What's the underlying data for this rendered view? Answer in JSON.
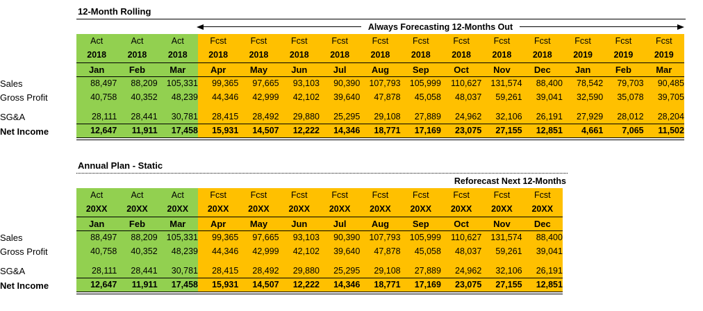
{
  "colors": {
    "background": "#FFFFFF",
    "actual_fill": "#92D050",
    "forecast_fill": "#FFC000",
    "line": "#000000",
    "text": "#000000"
  },
  "chart_data": [
    {
      "type": "table",
      "title": "12-Month Rolling",
      "annotation": "Always Forecasting 12-Months Out",
      "columns": [
        {
          "type": "Act",
          "year": "2018",
          "month": "Jan",
          "actual": true
        },
        {
          "type": "Act",
          "year": "2018",
          "month": "Feb",
          "actual": true
        },
        {
          "type": "Act",
          "year": "2018",
          "month": "Mar",
          "actual": true
        },
        {
          "type": "Fcst",
          "year": "2018",
          "month": "Apr",
          "actual": false
        },
        {
          "type": "Fcst",
          "year": "2018",
          "month": "May",
          "actual": false
        },
        {
          "type": "Fcst",
          "year": "2018",
          "month": "Jun",
          "actual": false
        },
        {
          "type": "Fcst",
          "year": "2018",
          "month": "Jul",
          "actual": false
        },
        {
          "type": "Fcst",
          "year": "2018",
          "month": "Aug",
          "actual": false
        },
        {
          "type": "Fcst",
          "year": "2018",
          "month": "Sep",
          "actual": false
        },
        {
          "type": "Fcst",
          "year": "2018",
          "month": "Oct",
          "actual": false
        },
        {
          "type": "Fcst",
          "year": "2018",
          "month": "Nov",
          "actual": false
        },
        {
          "type": "Fcst",
          "year": "2018",
          "month": "Dec",
          "actual": false
        },
        {
          "type": "Fcst",
          "year": "2019",
          "month": "Jan",
          "actual": false
        },
        {
          "type": "Fcst",
          "year": "2019",
          "month": "Feb",
          "actual": false
        },
        {
          "type": "Fcst",
          "year": "2019",
          "month": "Mar",
          "actual": false
        }
      ],
      "rows": [
        {
          "label": "Sales",
          "total": false,
          "spacer_before": false,
          "values": [
            88497,
            88209,
            105331,
            99365,
            97665,
            93103,
            90390,
            107793,
            105999,
            110627,
            131574,
            88400,
            78542,
            79703,
            90485
          ]
        },
        {
          "label": "Gross Profit",
          "total": false,
          "spacer_before": false,
          "values": [
            40758,
            40352,
            48239,
            44346,
            42999,
            42102,
            39640,
            47878,
            45058,
            48037,
            59261,
            39041,
            32590,
            35078,
            39705
          ]
        },
        {
          "label": "SG&A",
          "total": false,
          "spacer_before": true,
          "values": [
            28111,
            28441,
            30781,
            28415,
            28492,
            29880,
            25295,
            29108,
            27889,
            24962,
            32106,
            26191,
            27929,
            28012,
            28204
          ]
        },
        {
          "label": "Net Income",
          "total": true,
          "spacer_before": false,
          "values": [
            12647,
            11911,
            17458,
            15931,
            14507,
            12222,
            14346,
            18771,
            17169,
            23075,
            27155,
            12851,
            4661,
            7065,
            11502
          ]
        }
      ]
    },
    {
      "type": "table",
      "title": "Annual Plan - Static",
      "annotation": "Reforecast Next 12-Months",
      "columns": [
        {
          "type": "Act",
          "year": "20XX",
          "month": "Jan",
          "actual": true
        },
        {
          "type": "Act",
          "year": "20XX",
          "month": "Feb",
          "actual": true
        },
        {
          "type": "Act",
          "year": "20XX",
          "month": "Mar",
          "actual": true
        },
        {
          "type": "Fcst",
          "year": "20XX",
          "month": "Apr",
          "actual": false
        },
        {
          "type": "Fcst",
          "year": "20XX",
          "month": "May",
          "actual": false
        },
        {
          "type": "Fcst",
          "year": "20XX",
          "month": "Jun",
          "actual": false
        },
        {
          "type": "Fcst",
          "year": "20XX",
          "month": "Jul",
          "actual": false
        },
        {
          "type": "Fcst",
          "year": "20XX",
          "month": "Aug",
          "actual": false
        },
        {
          "type": "Fcst",
          "year": "20XX",
          "month": "Sep",
          "actual": false
        },
        {
          "type": "Fcst",
          "year": "20XX",
          "month": "Oct",
          "actual": false
        },
        {
          "type": "Fcst",
          "year": "20XX",
          "month": "Nov",
          "actual": false
        },
        {
          "type": "Fcst",
          "year": "20XX",
          "month": "Dec",
          "actual": false
        }
      ],
      "rows": [
        {
          "label": "Sales",
          "total": false,
          "spacer_before": false,
          "values": [
            88497,
            88209,
            105331,
            99365,
            97665,
            93103,
            90390,
            107793,
            105999,
            110627,
            131574,
            88400
          ]
        },
        {
          "label": "Gross Profit",
          "total": false,
          "spacer_before": false,
          "values": [
            40758,
            40352,
            48239,
            44346,
            42999,
            42102,
            39640,
            47878,
            45058,
            48037,
            59261,
            39041
          ]
        },
        {
          "label": "SG&A",
          "total": false,
          "spacer_before": true,
          "values": [
            28111,
            28441,
            30781,
            28415,
            28492,
            29880,
            25295,
            29108,
            27889,
            24962,
            32106,
            26191
          ]
        },
        {
          "label": "Net Income",
          "total": true,
          "spacer_before": false,
          "values": [
            12647,
            11911,
            17458,
            15931,
            14507,
            12222,
            14346,
            18771,
            17169,
            23075,
            27155,
            12851
          ]
        }
      ]
    }
  ]
}
